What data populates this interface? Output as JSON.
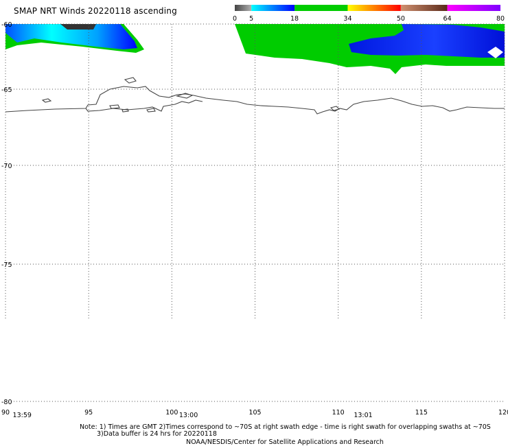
{
  "title": "SMAP NRT Winds 20220118 ascending",
  "colorbar": {
    "tick_labels": [
      "0",
      "5",
      "18",
      "34",
      "50",
      "64",
      "80"
    ],
    "tick_values": [
      0,
      5,
      18,
      34,
      50,
      64,
      80
    ],
    "segments": [
      {
        "from": 0,
        "to": 5,
        "colors": [
          "#444444",
          "#b0b0b0"
        ]
      },
      {
        "from": 5,
        "to": 18,
        "colors": [
          "#00ffff",
          "#0000ff"
        ]
      },
      {
        "from": 18,
        "to": 34,
        "colors": [
          "#00cc00",
          "#00cc00"
        ]
      },
      {
        "from": 34,
        "to": 50,
        "colors": [
          "#ffff00",
          "#ff0000"
        ]
      },
      {
        "from": 50,
        "to": 64,
        "colors": [
          "#d09070",
          "#5a2a1a"
        ]
      },
      {
        "from": 64,
        "to": 80,
        "colors": [
          "#ff00ff",
          "#8000ff"
        ]
      }
    ]
  },
  "axes": {
    "lat_labels": [
      "-60",
      "-65",
      "-70",
      "-75",
      "-80"
    ],
    "lat_values": [
      -60,
      -65,
      -70,
      -75,
      -80
    ],
    "lon_labels": [
      "90",
      "95",
      "100",
      "105",
      "110",
      "115",
      "120"
    ],
    "lon_values": [
      90,
      95,
      100,
      105,
      110,
      115,
      120
    ],
    "time_labels": [
      "13:59",
      "13:00",
      "13:01"
    ],
    "time_lons": [
      91,
      101,
      111.5
    ]
  },
  "notes": {
    "line1": "Note: 1) Times are GMT 2)Times correspond to ~70S at right swath edge - time is right swath for overlapping swaths at ~70S",
    "line2": "3)Data buffer is 24 hrs for 20220118",
    "line3": "NOAA/NESDIS/Center for Satellite Applications and Research"
  },
  "colors": {
    "green": "#00cc00",
    "blue_dark": "#0000ff",
    "blue_light": "#00ffff",
    "coast": "#444444",
    "grid": "#555555"
  }
}
